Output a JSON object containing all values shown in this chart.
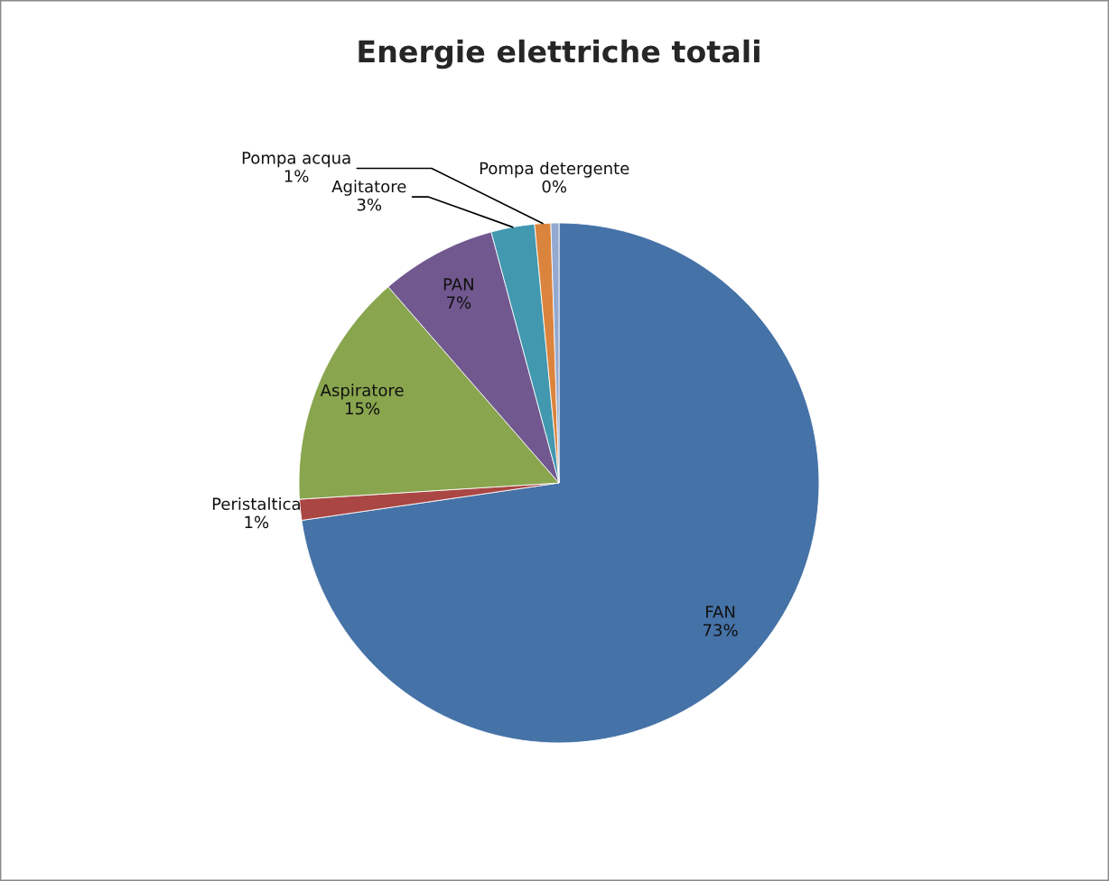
{
  "chart_data": {
    "type": "pie",
    "title": "Energie elettriche totali",
    "categories": [
      "FAN",
      "Peristaltica",
      "Aspiratore",
      "PAN",
      "Agitatore",
      "Pompa acqua",
      "Pompa detergente"
    ],
    "values": [
      72.7,
      1.3,
      14.6,
      7.2,
      2.7,
      1.0,
      0.5
    ],
    "value_labels": [
      "73%",
      "1%",
      "15%",
      "7%",
      "3%",
      "1%",
      "0%"
    ],
    "colors": [
      "#4572a7",
      "#aa4643",
      "#89a54e",
      "#71588f",
      "#4198af",
      "#db843d",
      "#93a9cf"
    ]
  }
}
